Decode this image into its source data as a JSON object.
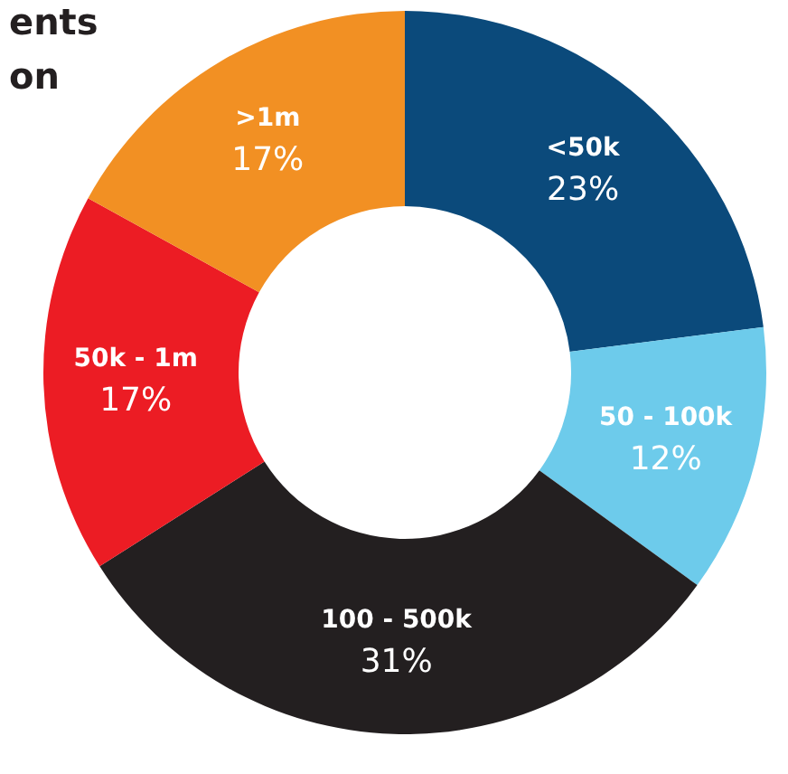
{
  "chart_data": {
    "type": "donut",
    "title": "ents\non",
    "categories": [
      "<50k",
      "50 - 100k",
      "100 - 500k",
      "50k - 1m",
      ">1m"
    ],
    "values": [
      23,
      12,
      31,
      17,
      17
    ],
    "value_labels": [
      "23%",
      "12%",
      "31%",
      "17%",
      "17%"
    ],
    "colors": [
      "#0b4a7b",
      "#6dcbeb",
      "#231f20",
      "#ec1c24",
      "#f29023"
    ],
    "legend": false
  }
}
